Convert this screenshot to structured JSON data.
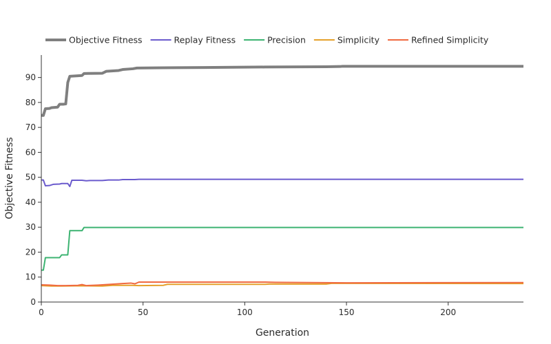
{
  "chart_data": {
    "type": "line",
    "title": "",
    "xlabel": "Generation",
    "ylabel": "Objective Fitness",
    "xlim": [
      0,
      237
    ],
    "ylim": [
      0,
      99
    ],
    "x_ticks": [
      0,
      50,
      100,
      150,
      200
    ],
    "y_ticks": [
      0,
      10,
      20,
      30,
      40,
      50,
      60,
      70,
      80,
      90
    ],
    "grid": false,
    "legend_position": "top-left, horizontal",
    "series": [
      {
        "name": "Objective Fitness",
        "color": "#7f7f7f",
        "emphasis": "thick",
        "points": [
          [
            0,
            74.8
          ],
          [
            1,
            74.8
          ],
          [
            2,
            77.5
          ],
          [
            4,
            77.6
          ],
          [
            5,
            77.9
          ],
          [
            8,
            78.1
          ],
          [
            9,
            79.3
          ],
          [
            11,
            79.3
          ],
          [
            12,
            79.4
          ],
          [
            13,
            88.0
          ],
          [
            14,
            90.5
          ],
          [
            20,
            90.8
          ],
          [
            21,
            91.6
          ],
          [
            30,
            91.7
          ],
          [
            32,
            92.5
          ],
          [
            38,
            92.8
          ],
          [
            40,
            93.2
          ],
          [
            45,
            93.5
          ],
          [
            47,
            93.8
          ],
          [
            60,
            93.9
          ],
          [
            80,
            94.0
          ],
          [
            110,
            94.2
          ],
          [
            140,
            94.3
          ],
          [
            147,
            94.4
          ],
          [
            148,
            94.5
          ],
          [
            237,
            94.5
          ]
        ]
      },
      {
        "name": "Replay Fitness",
        "color": "#6a5acd",
        "points": [
          [
            0,
            48.9
          ],
          [
            1,
            48.9
          ],
          [
            2,
            46.6
          ],
          [
            4,
            46.7
          ],
          [
            6,
            47.2
          ],
          [
            9,
            47.3
          ],
          [
            10,
            47.5
          ],
          [
            13,
            47.5
          ],
          [
            14,
            46.3
          ],
          [
            15,
            48.8
          ],
          [
            20,
            48.8
          ],
          [
            22,
            48.6
          ],
          [
            24,
            48.7
          ],
          [
            30,
            48.7
          ],
          [
            33,
            48.9
          ],
          [
            38,
            48.9
          ],
          [
            40,
            49.1
          ],
          [
            46,
            49.1
          ],
          [
            48,
            49.2
          ],
          [
            237,
            49.2
          ]
        ]
      },
      {
        "name": "Precision",
        "color": "#3cb371",
        "points": [
          [
            0,
            12.8
          ],
          [
            1,
            12.8
          ],
          [
            2,
            17.8
          ],
          [
            9,
            17.8
          ],
          [
            10,
            18.9
          ],
          [
            13,
            18.9
          ],
          [
            14,
            28.6
          ],
          [
            20,
            28.6
          ],
          [
            21,
            29.9
          ],
          [
            237,
            29.9
          ]
        ]
      },
      {
        "name": "Simplicity",
        "color": "#e5a02a",
        "points": [
          [
            0,
            6.6
          ],
          [
            5,
            6.4
          ],
          [
            10,
            6.4
          ],
          [
            20,
            6.5
          ],
          [
            30,
            6.4
          ],
          [
            35,
            6.7
          ],
          [
            45,
            6.7
          ],
          [
            48,
            6.6
          ],
          [
            60,
            6.7
          ],
          [
            62,
            7.1
          ],
          [
            110,
            7.1
          ],
          [
            112,
            7.2
          ],
          [
            140,
            7.2
          ],
          [
            143,
            7.5
          ],
          [
            237,
            7.4
          ]
        ]
      },
      {
        "name": "Refined Simplicity",
        "color": "#f0693f",
        "points": [
          [
            0,
            6.9
          ],
          [
            4,
            6.8
          ],
          [
            8,
            6.6
          ],
          [
            12,
            6.6
          ],
          [
            18,
            6.7
          ],
          [
            20,
            7.0
          ],
          [
            22,
            6.6
          ],
          [
            28,
            6.8
          ],
          [
            34,
            7.1
          ],
          [
            40,
            7.4
          ],
          [
            44,
            7.6
          ],
          [
            46,
            7.3
          ],
          [
            48,
            8.0
          ],
          [
            110,
            8.0
          ],
          [
            115,
            7.9
          ],
          [
            150,
            7.7
          ],
          [
            237,
            7.8
          ]
        ]
      }
    ]
  }
}
